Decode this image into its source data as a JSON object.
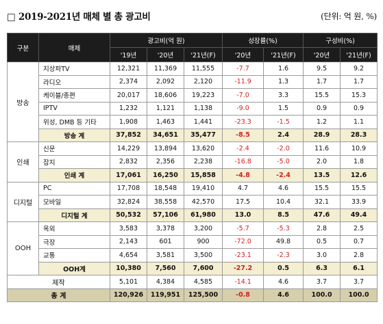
{
  "title": "□ 2019-2021년 매체 별 총 광고비",
  "unit": "(단위: 억 원, %)",
  "headers": {
    "group": "구분",
    "media": "매체",
    "adspend": "광고비(억 원)",
    "growth": "성장률(%)",
    "share": "구성비(%)",
    "y19": "'19년",
    "y20": "'20년",
    "y21f": "'21년(F)",
    "g20": "'20년",
    "g21f": "'21년(F)",
    "s20": "'20년",
    "s21f": "'21년(F)"
  },
  "groups": [
    {
      "name": "방송",
      "rows": [
        {
          "media": "지상파TV",
          "v19": "12,321",
          "v20": "11,369",
          "v21": "11,555",
          "g20": "-7.7",
          "g21": "1.6",
          "s20": "9.5",
          "s21": "9.2"
        },
        {
          "media": "라디오",
          "v19": "2,374",
          "v20": "2,092",
          "v21": "2,120",
          "g20": "-11.9",
          "g21": "1.3",
          "s20": "1.7",
          "s21": "1.7"
        },
        {
          "media": "케이블/종편",
          "v19": "20,017",
          "v20": "18,606",
          "v21": "19,223",
          "g20": "-7.0",
          "g21": "3.3",
          "s20": "15.5",
          "s21": "15.3"
        },
        {
          "media": "IPTV",
          "v19": "1,232",
          "v20": "1,121",
          "v21": "1,138",
          "g20": "-9.0",
          "g21": "1.5",
          "s20": "0.9",
          "s21": "0.9"
        },
        {
          "media": "위성, DMB 등 기타",
          "v19": "1,908",
          "v20": "1,463",
          "v21": "1,441",
          "g20": "-23.3",
          "g21": "-1.5",
          "s20": "1.2",
          "s21": "1.1"
        }
      ],
      "subtotal": {
        "media": "방송 계",
        "v19": "37,852",
        "v20": "34,651",
        "v21": "35,477",
        "g20": "-8.5",
        "g21": "2.4",
        "s20": "28.9",
        "s21": "28.3"
      }
    },
    {
      "name": "인쇄",
      "rows": [
        {
          "media": "신문",
          "v19": "14,229",
          "v20": "13,894",
          "v21": "13,620",
          "g20": "-2.4",
          "g21": "-2.0",
          "s20": "11.6",
          "s21": "10.9"
        },
        {
          "media": "잡지",
          "v19": "2,832",
          "v20": "2,356",
          "v21": "2,238",
          "g20": "-16.8",
          "g21": "-5.0",
          "s20": "2.0",
          "s21": "1.8"
        }
      ],
      "subtotal": {
        "media": "인쇄 계",
        "v19": "17,061",
        "v20": "16,250",
        "v21": "15,858",
        "g20": "-4.8",
        "g21": "-2.4",
        "s20": "13.5",
        "s21": "12.6"
      }
    },
    {
      "name": "디지털",
      "rows": [
        {
          "media": "PC",
          "v19": "17,708",
          "v20": "18,548",
          "v21": "19,410",
          "g20": "4.7",
          "g21": "4.6",
          "s20": "15.5",
          "s21": "15.5"
        },
        {
          "media": "모바일",
          "v19": "32,824",
          "v20": "38,558",
          "v21": "42,570",
          "g20": "17.5",
          "g21": "10.4",
          "s20": "32.1",
          "s21": "33.9"
        }
      ],
      "subtotal": {
        "media": "디지털 계",
        "v19": "50,532",
        "v20": "57,106",
        "v21": "61,980",
        "g20": "13.0",
        "g21": "8.5",
        "s20": "47.6",
        "s21": "49.4"
      }
    },
    {
      "name": "OOH",
      "rows": [
        {
          "media": "옥외",
          "v19": "3,583",
          "v20": "3,378",
          "v21": "3,200",
          "g20": "-5.7",
          "g21": "-5.3",
          "s20": "2.8",
          "s21": "2.5"
        },
        {
          "media": "극장",
          "v19": "2,143",
          "v20": "601",
          "v21": "900",
          "g20": "-72.0",
          "g21": "49.8",
          "s20": "0.5",
          "s21": "0.7"
        },
        {
          "media": "교통",
          "v19": "4,654",
          "v20": "3,581",
          "v21": "3,500",
          "g20": "-23.1",
          "g21": "-2.3",
          "s20": "3.0",
          "s21": "2.8"
        }
      ],
      "subtotal": {
        "media": "OOH계",
        "v19": "10,380",
        "v20": "7,560",
        "v21": "7,600",
        "g20": "-27.2",
        "g21": "0.5",
        "s20": "6.3",
        "s21": "6.1"
      }
    }
  ],
  "production": {
    "label": "제작",
    "v19": "5,101",
    "v20": "4,384",
    "v21": "4,585",
    "g20": "-14.1",
    "g21": "4.6",
    "s20": "3.7",
    "s21": "3.7"
  },
  "total": {
    "label": "총 계",
    "v19": "120,926",
    "v20": "119,951",
    "v21": "125,500",
    "g20": "-0.8",
    "g21": "4.6",
    "s20": "100.0",
    "s21": "100.0"
  },
  "colors": {
    "header_bg": "#1c1c1c",
    "subtotal_bg": "#f4eed2",
    "total_bg": "#d6cfac",
    "negative": "#d21e1e"
  }
}
